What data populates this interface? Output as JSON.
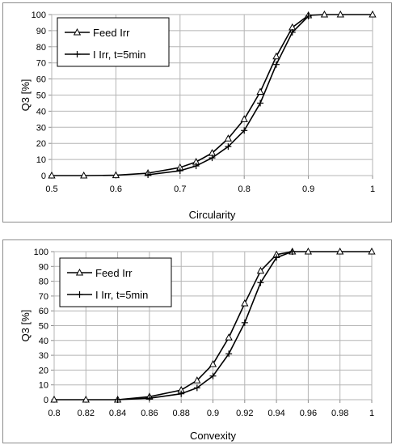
{
  "chart_data": [
    {
      "type": "line",
      "xlabel": "Circularity",
      "ylabel": "Q3 [%]",
      "xlim": [
        0.5,
        1
      ],
      "ylim": [
        0,
        100
      ],
      "xticks": [
        "0.5",
        "0.6",
        "0.7",
        "0.8",
        "0.9",
        "1"
      ],
      "yticks": [
        "0",
        "10",
        "20",
        "30",
        "40",
        "50",
        "60",
        "70",
        "80",
        "90",
        "100"
      ],
      "grid": true,
      "legend_position": "top-left",
      "series": [
        {
          "name": "Feed Irr",
          "marker": "triangle",
          "x": [
            0.5,
            0.55,
            0.6,
            0.65,
            0.7,
            0.725,
            0.75,
            0.775,
            0.8,
            0.825,
            0.85,
            0.875,
            0.9,
            0.925,
            0.95,
            1.0
          ],
          "y": [
            0,
            0,
            0.2,
            1.5,
            5,
            8.5,
            14,
            23,
            35,
            52,
            74,
            92,
            99.5,
            100,
            100,
            100
          ]
        },
        {
          "name": "I Irr, t=5min",
          "marker": "plus",
          "x": [
            0.65,
            0.7,
            0.725,
            0.75,
            0.775,
            0.8,
            0.825,
            0.85,
            0.875,
            0.9
          ],
          "y": [
            0.5,
            3,
            6,
            11,
            18,
            28,
            45,
            69,
            89,
            99
          ]
        }
      ]
    },
    {
      "type": "line",
      "xlabel": "Convexity",
      "ylabel": "Q3 [%]",
      "xlim": [
        0.8,
        1
      ],
      "ylim": [
        0,
        100
      ],
      "xticks": [
        "0.8",
        "0.82",
        "0.84",
        "0.86",
        "0.88",
        "0.9",
        "0.92",
        "0.94",
        "0.96",
        "0.98",
        "1"
      ],
      "yticks": [
        "0",
        "10",
        "20",
        "30",
        "40",
        "50",
        "60",
        "70",
        "80",
        "90",
        "100"
      ],
      "grid": true,
      "legend_position": "top-left",
      "series": [
        {
          "name": "Feed Irr",
          "marker": "triangle",
          "x": [
            0.8,
            0.82,
            0.84,
            0.86,
            0.88,
            0.89,
            0.9,
            0.91,
            0.92,
            0.93,
            0.94,
            0.95,
            0.96,
            0.98,
            1.0
          ],
          "y": [
            0,
            0,
            0,
            2,
            6.5,
            13,
            24,
            42,
            65,
            87,
            98,
            100,
            100,
            100,
            100
          ]
        },
        {
          "name": "I Irr, t=5min",
          "marker": "plus",
          "x": [
            0.84,
            0.86,
            0.88,
            0.89,
            0.9,
            0.91,
            0.92,
            0.93,
            0.94,
            0.95
          ],
          "y": [
            0,
            1,
            4,
            8,
            16,
            31,
            52,
            79,
            96,
            100
          ]
        }
      ]
    }
  ]
}
